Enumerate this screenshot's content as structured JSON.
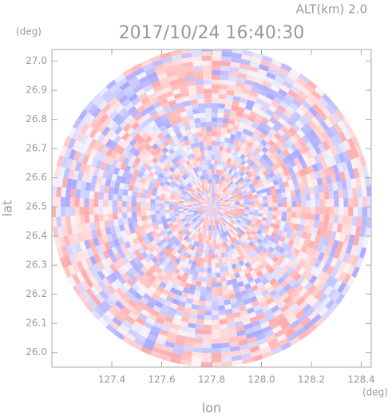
{
  "chart_data": {
    "type": "ppi",
    "title": "2017/10/24 16:40:30",
    "annotation": "ALT(km) 2.0",
    "x_label": "lon",
    "y_label": "lat",
    "x_unit": "(deg)",
    "y_unit": "(deg)",
    "xlim": [
      127.16,
      128.44
    ],
    "ylim": [
      25.95,
      27.04
    ],
    "xticks": [
      127.4,
      127.6,
      127.8,
      {
        "value": 128,
        "label": "128.0"
      },
      128.2,
      128.4
    ],
    "yticks": [
      {
        "value": 26,
        "label": "26.0"
      },
      26.1,
      26.2,
      26.3,
      26.4,
      26.5,
      26.6,
      26.7,
      26.8,
      26.9,
      {
        "value": 27,
        "label": "27.0"
      }
    ],
    "center": [
      127.8,
      26.5
    ]
  }
}
